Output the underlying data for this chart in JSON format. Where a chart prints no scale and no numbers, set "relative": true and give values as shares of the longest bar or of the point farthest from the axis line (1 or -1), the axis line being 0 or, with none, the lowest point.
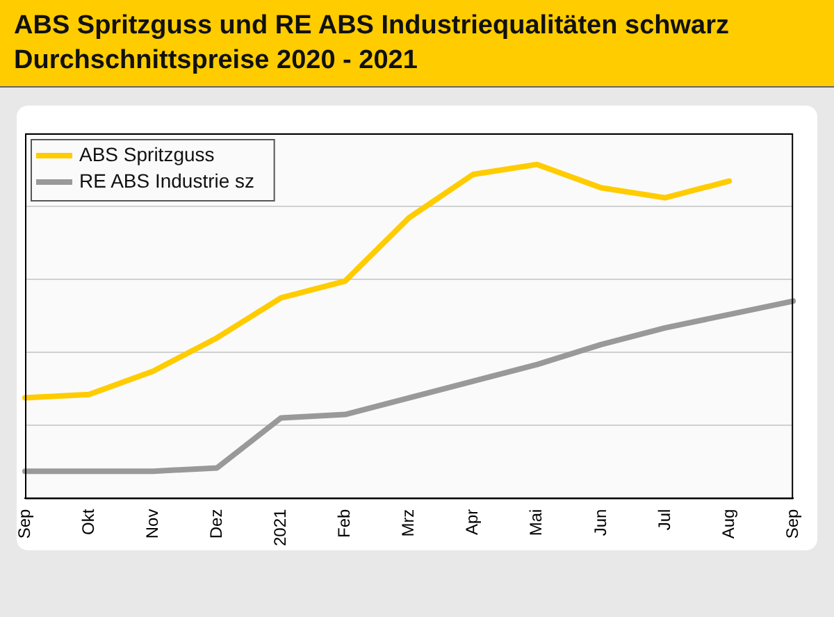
{
  "chart_data": {
    "type": "line",
    "title": "ABS Spritzguss und RE ABS Industriequalitäten schwarz",
    "subtitle": "Durchschnittspreise 2020 - 2021",
    "categories": [
      "Sep",
      "Okt",
      "Nov",
      "Dez",
      "2021",
      "Feb",
      "Mrz",
      "Apr",
      "Mai",
      "Jun",
      "Jul",
      "Aug",
      "Sep"
    ],
    "relative": true,
    "grid": "y",
    "legend": "top left",
    "marker": "none",
    "line_style": "solid",
    "series": [
      {
        "name": "ABS Spritzguss",
        "color": "#ffcc00",
        "values": [
          0.3,
          0.31,
          0.38,
          0.48,
          0.6,
          0.65,
          0.84,
          0.97,
          1,
          0.93,
          0.9,
          0.95,
          null
        ]
      },
      {
        "name": "RE ABS Industrie sz",
        "color": "#999999",
        "values": [
          0.08,
          0.08,
          0.08,
          0.09,
          0.24,
          0.25,
          0.3,
          0.35,
          0.4,
          0.46,
          0.51,
          0.55,
          0.59
        ]
      }
    ]
  }
}
